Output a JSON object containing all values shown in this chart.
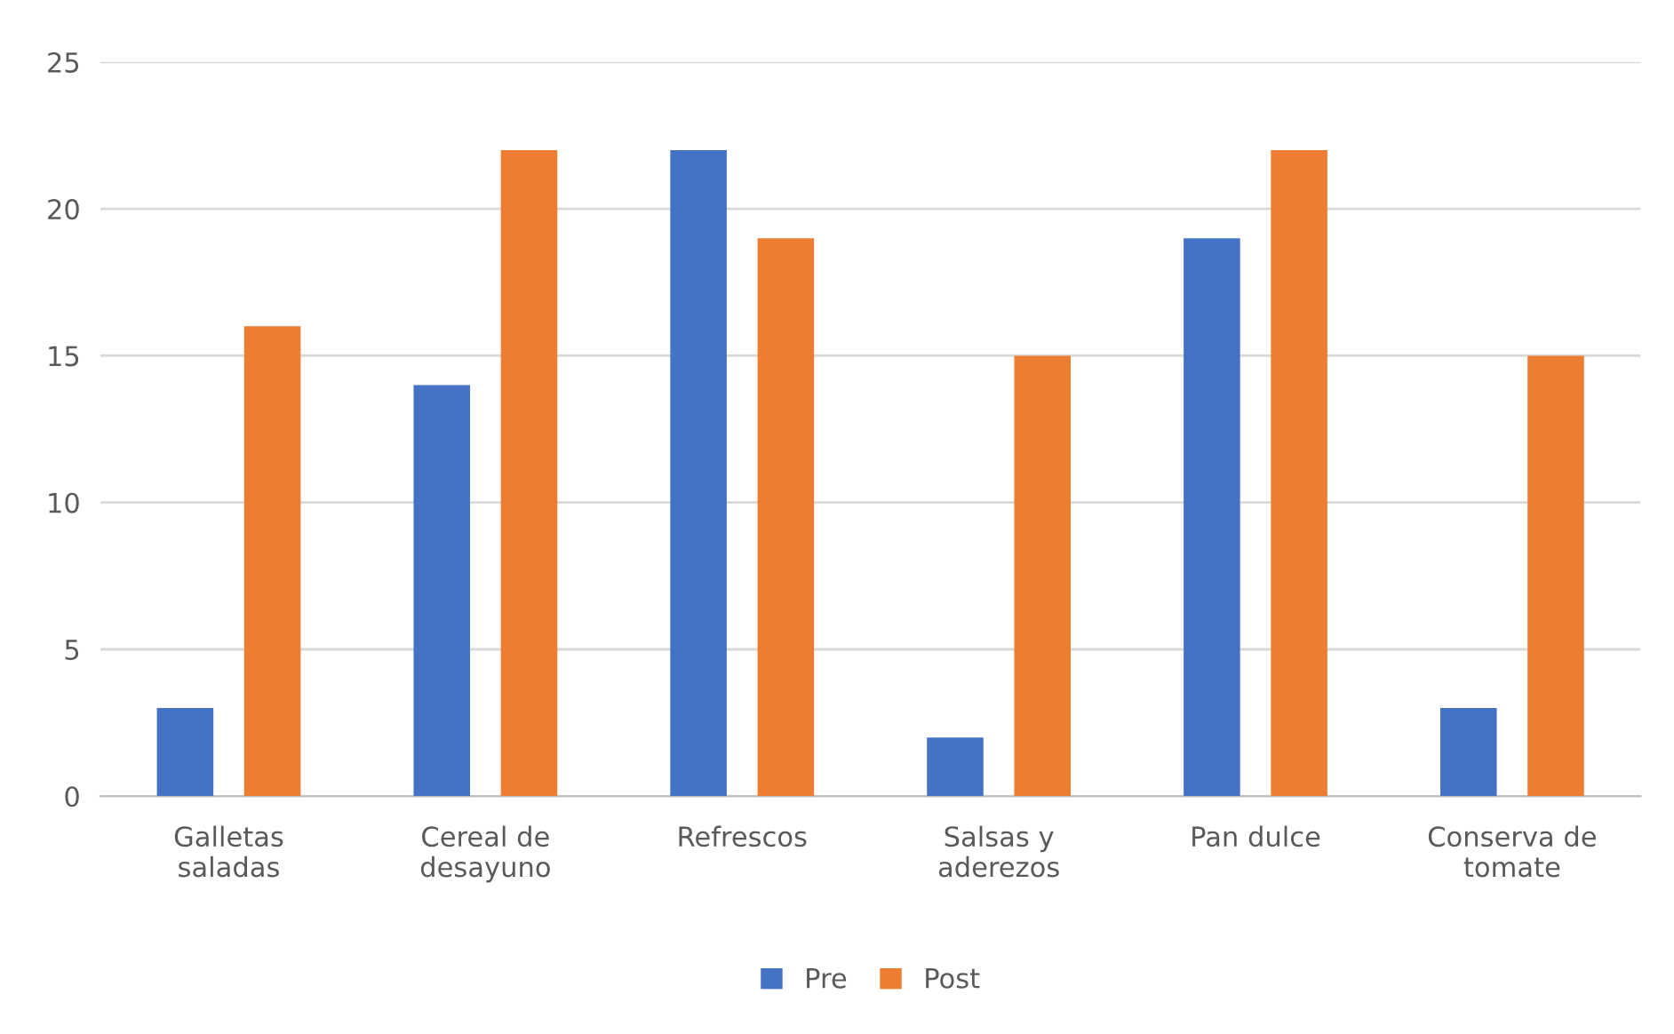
{
  "chart_data": {
    "type": "bar",
    "categories": [
      "Galletas saladas",
      "Cereal de desayuno",
      "Refrescos",
      "Salsas y aderezos",
      "Pan dulce",
      "Conserva de tomate"
    ],
    "series": [
      {
        "name": "Pre",
        "color": "#4472c4",
        "values": [
          3,
          14,
          22,
          2,
          19,
          3
        ]
      },
      {
        "name": "Post",
        "color": "#ed7d31",
        "values": [
          16,
          22,
          19,
          15,
          22,
          15
        ]
      }
    ],
    "ylim": [
      0,
      25
    ],
    "yticks": [
      0,
      5,
      10,
      15,
      20,
      25
    ],
    "grid": "y",
    "legend": "bottom"
  }
}
